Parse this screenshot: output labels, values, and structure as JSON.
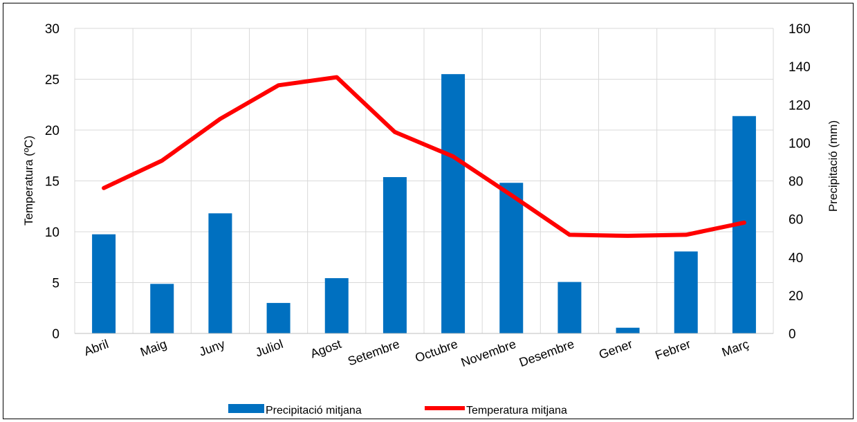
{
  "chart_data": {
    "type": "bar",
    "categories": [
      "Abril",
      "Maig",
      "Juny",
      "Juliol",
      "Agost",
      "Setembre",
      "Octubre",
      "Novembre",
      "Desembre",
      "Gener",
      "Febrer",
      "Març"
    ],
    "series": [
      {
        "name": "Precipitació mitjana",
        "type": "bar",
        "axis": "right",
        "color": "#0070C0",
        "values": [
          52,
          26,
          63,
          16,
          29,
          82,
          136,
          79,
          27,
          3,
          43,
          114
        ]
      },
      {
        "name": "Temperatura mitjana",
        "type": "line",
        "axis": "left",
        "color": "#FF0000",
        "values": [
          14.3,
          17.0,
          21.1,
          24.4,
          25.2,
          19.8,
          17.4,
          13.6,
          9.7,
          9.6,
          9.7,
          10.9
        ]
      }
    ],
    "ylabel_left": "Temperatura (ºC)",
    "ylabel_right": "Precipitació (mm)",
    "ylim_left": [
      0,
      30
    ],
    "ylim_right": [
      0,
      160
    ],
    "yticks_left": [
      "0",
      "5",
      "10",
      "15",
      "20",
      "25",
      "30"
    ],
    "yticks_right": [
      "0",
      "20",
      "40",
      "60",
      "80",
      "100",
      "120",
      "140",
      "160"
    ],
    "grid": true,
    "legend_position": "bottom"
  }
}
